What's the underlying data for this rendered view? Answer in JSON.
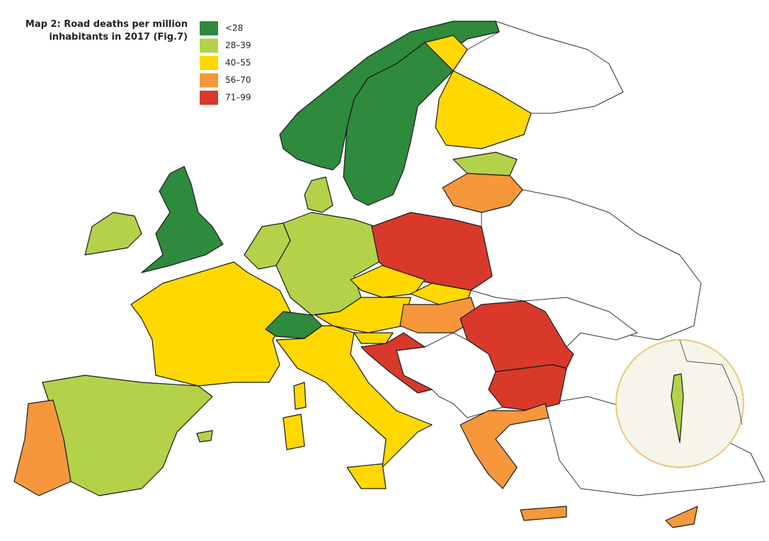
{
  "title": [
    "Map 2: Road deaths per million",
    "inhabitants in 2017 (Fig.7)"
  ],
  "legend": [
    {
      "label": "<28",
      "color": "#2e8a3c"
    },
    {
      "label": "28–39",
      "color": "#b3d24a"
    },
    {
      "label": "40–55",
      "color": "#ffd800"
    },
    {
      "label": "56–70",
      "color": "#f6973b"
    },
    {
      "label": "71–99",
      "color": "#d8392b"
    }
  ]
}
